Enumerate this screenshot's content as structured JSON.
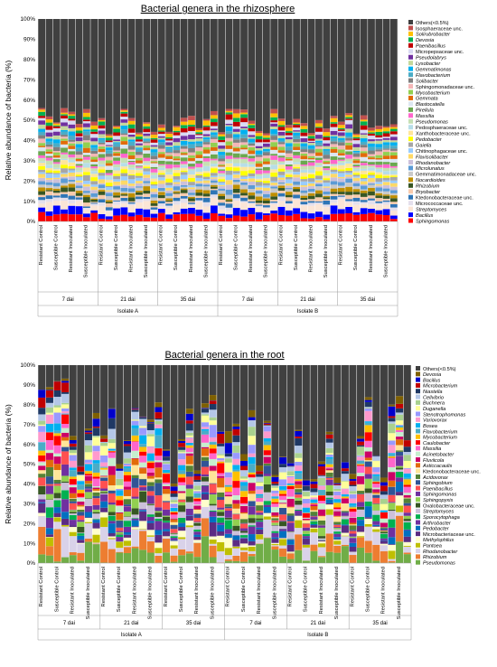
{
  "chart_data": [
    {
      "type": "bar",
      "stacked": true,
      "title": "Bacterial genera in the rhizosphere",
      "ylabel": "Relative abundance of bacteria (%)",
      "ylim": [
        0,
        100
      ],
      "yticks": [
        "0%",
        "10%",
        "20%",
        "30%",
        "40%",
        "50%",
        "60%",
        "70%",
        "80%",
        "90%",
        "100%"
      ],
      "conditions": [
        "Resistant Control",
        "Susceptible Control",
        "Resistant Inoculated",
        "Susceptible Inoculated"
      ],
      "timepoints": [
        "7 dai",
        "21 dai",
        "35 dai"
      ],
      "isolates": [
        "Isolate A",
        "Isolate B"
      ],
      "others_label": "Others(<0.5%)",
      "others_color": "#404040",
      "genera_top_to_bottom": [
        "Isosphaeraceae unc.",
        "Solirubrobacter",
        "Devosia",
        "Paenibacillus",
        "Micropepsaceae unc.",
        "Pseudolabrys",
        "Lysobacter",
        "Gemmatimonas",
        "Flavobacterium",
        "Solibacter",
        "Sphingomonadaceae unc.",
        "Mycobacterium",
        "Gemmata",
        "Blastocatella",
        "Pirellula",
        "Massilia",
        "Pseudomonas",
        "Pedosphaeraceae unc.",
        "Xanthobacteraceae unc.",
        "Pedobacter",
        "Gaiella",
        "Chitinophagaceae unc.",
        "Flavisolibacter",
        "Rhodanobacter",
        "Microlunatus",
        "Gemmatimonadaceae unc.",
        "Nocardioides",
        "Rhizobium",
        "Bryobacter",
        "Ktedonobacteraceae unc.",
        "Micrococcaceae unc.",
        "Streptomyces",
        "Bacillus",
        "Sphingomonas"
      ],
      "colors_top_to_bottom": [
        "#c0504d",
        "#ffc000",
        "#00b050",
        "#c00000",
        "#d9d9f3",
        "#7030a0",
        "#c4d79b",
        "#00b0f0",
        "#4bacc6",
        "#7f7f7f",
        "#f4b6b6",
        "#92d050",
        "#e26b0a",
        "#dce6f1",
        "#6aa84f",
        "#ff66cc",
        "#c6e0b4",
        "#b7dee8",
        "#ffe699",
        "#ffff00",
        "#a6a6a6",
        "#99ccff",
        "#ffd966",
        "#ccc0da",
        "#5b9bd5",
        "#c9c9c9",
        "#bf8f00",
        "#375623",
        "#f8cbad",
        "#2e75b6",
        "#e4dfec",
        "#fbe5d6",
        "#0000ff",
        "#ff0000"
      ],
      "values_per_bar": "each of 48 bars: Others ≈ 45–62%, remaining share split across listed genera; Sphingomonas ≈ 4–6%, Bacillus ≈ 3–6%, Streptomyces ≈ 2–5%"
    },
    {
      "type": "bar",
      "stacked": true,
      "title": "Bacterial genera in the root",
      "ylabel": "Relative abundance of bacteria (%)",
      "ylim": [
        0,
        100
      ],
      "yticks": [
        "0%",
        "10%",
        "20%",
        "30%",
        "40%",
        "50%",
        "60%",
        "70%",
        "80%",
        "90%",
        "100%"
      ],
      "conditions": [
        "Resistant Control",
        "Susceptible Control",
        "Resistant Inoculated",
        "Susceptible Inoculated"
      ],
      "timepoints": [
        "7 dai",
        "21 dai",
        "35 dai"
      ],
      "isolates": [
        "Isolate A",
        "Isolate B"
      ],
      "others_label": "Others(<0.5%)",
      "others_color": "#404040",
      "genera_top_to_bottom": [
        "Devosia",
        "Bacillus",
        "Microbacterium",
        "Niastella",
        "Cellvibrio",
        "Buchnera",
        "Duganella",
        "Stenotrophomonas",
        "Variovorax",
        "Bosea",
        "Flavobacterium",
        "Mycobacterium",
        "Caulobacter",
        "Massilia",
        "Acinetobacter",
        "Fluviicola",
        "Asticcacaulis",
        "Ktedonobacteraceae unc.",
        "Acidovorax",
        "Sphingobium",
        "Paenibacillus",
        "Sphingomonas",
        "Sphingopyxis",
        "Oxalobacteraceae unc.",
        "Streptomyces",
        "Sporocytophaga",
        "Arthrobacter",
        "Pedobacter",
        "Microbacteriaceae unc.",
        "Methylophilus",
        "Pantoea",
        "Rhodanobacter",
        "Rhizobium",
        "Pseudomonas"
      ],
      "colors_top_to_bottom": [
        "#7f6000",
        "#0000cc",
        "#c00000",
        "#1f3864",
        "#b4c7e7",
        "#a9d18e",
        "#ffff99",
        "#9999ff",
        "#ff99cc",
        "#00b0f0",
        "#4bacc6",
        "#ffc000",
        "#ff0000",
        "#ff66cc",
        "#c6efce",
        "#cc0066",
        "#e26b0a",
        "#ffe699",
        "#548235",
        "#305496",
        "#ff5050",
        "#7030a0",
        "#92d050",
        "#375623",
        "#ccc0da",
        "#00b050",
        "#7030a0",
        "#0070c0",
        "#5b2c83",
        "#ffffcc",
        "#bfbf00",
        "#d9d2e9",
        "#ed7d31",
        "#70ad47"
      ],
      "values_per_bar": "Isolate A 7 dai: Pseudomonas ≈ 10–50%, Pantoea up to 40%; Isolate B: Rhizobium ≈ 10–35%, Rhodanobacter ≈ 10–25%; Others ≈ 20–100%"
    }
  ]
}
